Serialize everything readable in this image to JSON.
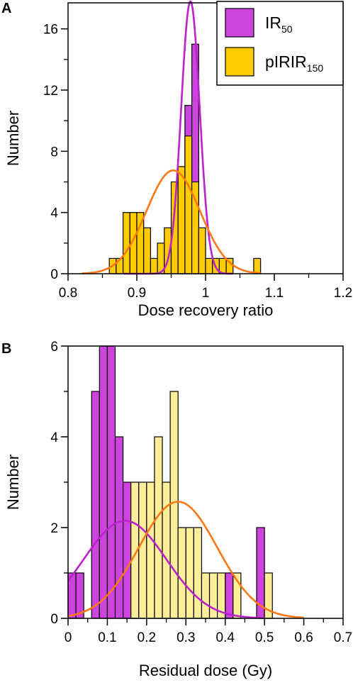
{
  "chart_data": [
    {
      "panel": "A",
      "type": "bar",
      "xlabel": "Dose recovery ratio",
      "ylabel": "Number",
      "xlim": [
        0.8,
        1.2
      ],
      "ylim": [
        0,
        17.7
      ],
      "xticks": [
        "0.8",
        "0.9",
        "1",
        "1.1",
        "1.2"
      ],
      "xtick_values": [
        0.8,
        0.9,
        1.0,
        1.1,
        1.2
      ],
      "yticks": [
        "0",
        "4",
        "8",
        "12",
        "16"
      ],
      "ytick_values": [
        0,
        4,
        8,
        12,
        16
      ],
      "bin_width": 0.01,
      "legend_position": "top-right",
      "legend": [
        {
          "base": "IR",
          "sub": "50",
          "color": "#cc44dd"
        },
        {
          "base": "pIRIR",
          "sub": "150",
          "color": "#ffcc00"
        }
      ],
      "series": [
        {
          "name": "IR50",
          "color": "#cc44dd",
          "bins": [
            [
              0.96,
              2
            ],
            [
              0.97,
              11
            ],
            [
              0.98,
              15
            ],
            [
              0.99,
              2
            ]
          ]
        },
        {
          "name": "pIRIR150",
          "color": "#ffcc00",
          "bins": [
            [
              0.86,
              1
            ],
            [
              0.87,
              1
            ],
            [
              0.88,
              4
            ],
            [
              0.89,
              4
            ],
            [
              0.9,
              4
            ],
            [
              0.91,
              3
            ],
            [
              0.92,
              1
            ],
            [
              0.93,
              2
            ],
            [
              0.94,
              3
            ],
            [
              0.95,
              6
            ],
            [
              0.96,
              7
            ],
            [
              0.97,
              9
            ],
            [
              0.98,
              6
            ],
            [
              0.99,
              3
            ],
            [
              1.0,
              1
            ],
            [
              1.01,
              1
            ],
            [
              1.02,
              1
            ],
            [
              1.03,
              1
            ],
            [
              1.07,
              1
            ]
          ]
        }
      ],
      "fits": [
        {
          "series": "IR50",
          "color": "#bb22cc",
          "mean": 0.978,
          "sd": 0.0135,
          "peak": 17.8,
          "x_range": [
            0.88,
            1.04
          ]
        },
        {
          "series": "pIRIR150",
          "color": "#ff7711",
          "mean": 0.953,
          "sd": 0.039,
          "peak": 6.75,
          "x_range": [
            0.82,
            1.08
          ]
        }
      ]
    },
    {
      "panel": "B",
      "type": "bar",
      "xlabel": "Residual dose (Gy)",
      "ylabel": "Number",
      "xlim": [
        0,
        0.7
      ],
      "ylim": [
        0,
        6
      ],
      "xticks": [
        "0",
        "0.1",
        "0.2",
        "0.3",
        "0.4",
        "0.5",
        "0.6",
        "0.7"
      ],
      "xtick_values": [
        0,
        0.1,
        0.2,
        0.3,
        0.4,
        0.5,
        0.6,
        0.7
      ],
      "yticks": [
        "0",
        "2",
        "4",
        "6"
      ],
      "ytick_values": [
        0,
        2,
        4,
        6
      ],
      "bin_width": 0.02,
      "series": [
        {
          "name": "IR50",
          "color": "#cc44dd",
          "bins": [
            [
              0.0,
              1
            ],
            [
              0.02,
              1
            ],
            [
              0.06,
              5
            ],
            [
              0.08,
              6
            ],
            [
              0.1,
              6
            ],
            [
              0.12,
              4
            ],
            [
              0.14,
              3
            ],
            [
              0.16,
              1
            ],
            [
              0.4,
              1
            ],
            [
              0.48,
              2
            ]
          ]
        },
        {
          "name": "pIRIR150",
          "color": "#ffee99",
          "bins": [
            [
              0.16,
              3
            ],
            [
              0.18,
              3
            ],
            [
              0.2,
              3
            ],
            [
              0.22,
              4
            ],
            [
              0.24,
              3
            ],
            [
              0.26,
              5
            ],
            [
              0.28,
              2
            ],
            [
              0.3,
              2
            ],
            [
              0.32,
              2
            ],
            [
              0.34,
              1
            ],
            [
              0.36,
              1
            ],
            [
              0.38,
              1
            ],
            [
              0.42,
              1
            ],
            [
              0.5,
              1
            ]
          ]
        }
      ],
      "fits": [
        {
          "series": "IR50",
          "color": "#bb22cc",
          "mean": 0.145,
          "sd": 0.105,
          "peak": 2.15,
          "x_range": [
            0,
            0.5
          ]
        },
        {
          "series": "pIRIR150",
          "color": "#ff7711",
          "mean": 0.28,
          "sd": 0.1,
          "peak": 2.57,
          "x_range": [
            0,
            0.6
          ]
        }
      ]
    }
  ]
}
